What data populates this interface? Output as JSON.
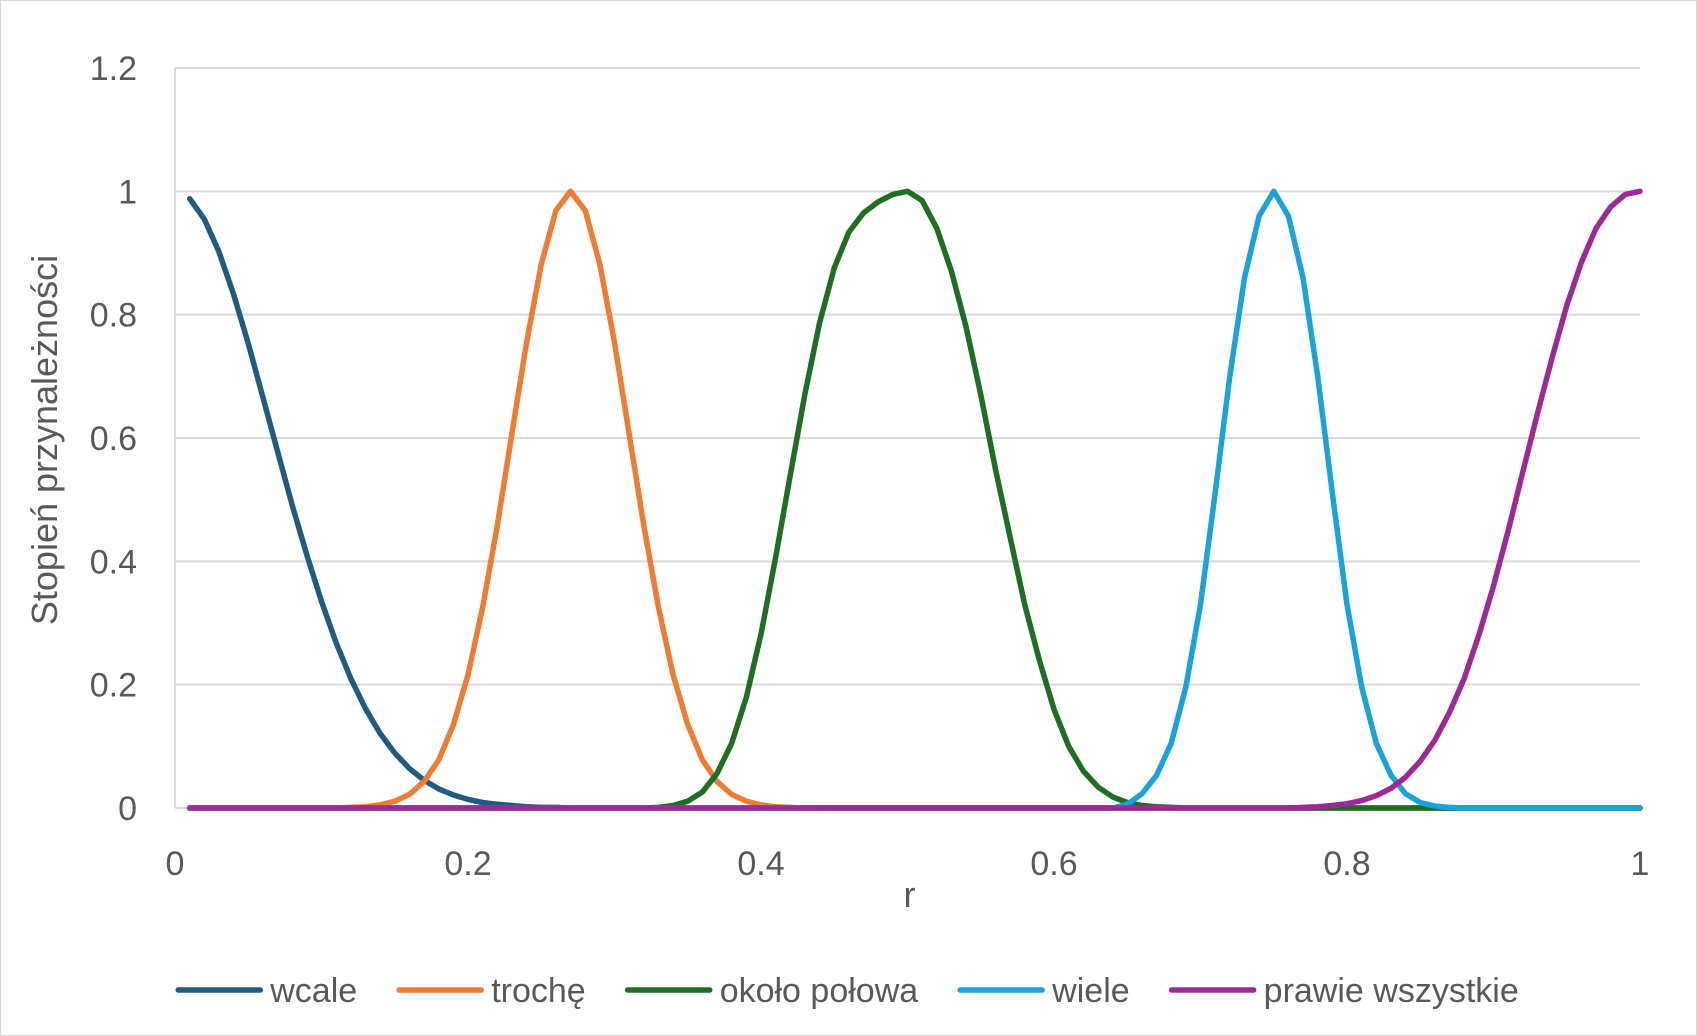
{
  "chart_data": {
    "type": "line",
    "title": "",
    "xlabel": "r",
    "ylabel": "Stopień przynależności",
    "xlim": [
      0,
      1
    ],
    "ylim": [
      0,
      1.2
    ],
    "x_ticks": [
      0,
      0.2,
      0.4,
      0.6,
      0.8,
      1
    ],
    "x_tick_labels": [
      "0",
      "0.2",
      "0.4",
      "0.6",
      "0.8",
      "1"
    ],
    "y_ticks": [
      0,
      0.2,
      0.4,
      0.6,
      0.8,
      1,
      1.2
    ],
    "y_tick_labels": [
      "0",
      "0.2",
      "0.4",
      "0.6",
      "0.8",
      "1",
      "1.2"
    ],
    "grid": "horizontal",
    "legend_position": "bottom",
    "x": [
      0.01,
      0.02,
      0.03,
      0.04,
      0.05,
      0.06,
      0.07,
      0.08,
      0.09,
      0.1,
      0.11,
      0.12,
      0.13,
      0.14,
      0.15,
      0.16,
      0.17,
      0.18,
      0.19,
      0.2,
      0.21,
      0.22,
      0.23,
      0.24,
      0.25,
      0.26,
      0.27,
      0.28,
      0.29,
      0.3,
      0.31,
      0.32,
      0.33,
      0.34,
      0.35,
      0.36,
      0.37,
      0.38,
      0.39,
      0.4,
      0.41,
      0.42,
      0.43,
      0.44,
      0.45,
      0.46,
      0.47,
      0.48,
      0.49,
      0.5,
      0.51,
      0.52,
      0.53,
      0.54,
      0.55,
      0.56,
      0.57,
      0.58,
      0.59,
      0.6,
      0.61,
      0.62,
      0.63,
      0.64,
      0.65,
      0.66,
      0.67,
      0.68,
      0.69,
      0.7,
      0.71,
      0.72,
      0.73,
      0.74,
      0.75,
      0.76,
      0.77,
      0.78,
      0.79,
      0.8,
      0.81,
      0.82,
      0.83,
      0.84,
      0.85,
      0.86,
      0.87,
      0.88,
      0.89,
      0.9,
      0.91,
      0.92,
      0.93,
      0.94,
      0.95,
      0.96,
      0.97,
      0.98,
      0.99,
      1.0
    ],
    "series": [
      {
        "name": "wcale",
        "color": "#1f5c7f",
        "values": [
          0.988,
          0.955,
          0.902,
          0.833,
          0.753,
          0.666,
          0.578,
          0.491,
          0.41,
          0.335,
          0.268,
          0.21,
          0.161,
          0.121,
          0.089,
          0.064,
          0.045,
          0.031,
          0.021,
          0.014,
          0.009,
          0.006,
          0.004,
          0.002,
          0.001,
          0.001,
          0.0,
          0.0,
          0.0,
          0.0,
          0.0,
          0.0,
          0.0,
          0.0,
          0.0,
          0.0,
          0.0,
          0.0,
          0.0,
          0.0,
          0.0,
          0.0,
          0.0,
          0.0,
          0.0,
          0.0,
          0.0,
          0.0,
          0.0,
          0.0,
          0.0,
          0.0,
          0.0,
          0.0,
          0.0,
          0.0,
          0.0,
          0.0,
          0.0,
          0.0,
          0.0,
          0.0,
          0.0,
          0.0,
          0.0,
          0.0,
          0.0,
          0.0,
          0.0,
          0.0,
          0.0,
          0.0,
          0.0,
          0.0,
          0.0,
          0.0,
          0.0,
          0.0,
          0.0,
          0.0,
          0.0,
          0.0,
          0.0,
          0.0,
          0.0,
          0.0,
          0.0,
          0.0,
          0.0,
          0.0,
          0.0,
          0.0,
          0.0,
          0.0,
          0.0,
          0.0,
          0.0,
          0.0,
          0.0,
          0.0
        ]
      },
      {
        "name": "trochę",
        "color": "#ed7d31",
        "values": [
          0.0,
          0.0,
          0.0,
          0.0,
          0.0,
          0.0,
          0.0,
          0.0,
          0.0,
          0.0,
          0.0,
          0.001,
          0.002,
          0.005,
          0.011,
          0.022,
          0.043,
          0.078,
          0.135,
          0.216,
          0.325,
          0.458,
          0.607,
          0.755,
          0.882,
          0.969,
          1.0,
          0.969,
          0.882,
          0.755,
          0.607,
          0.458,
          0.325,
          0.216,
          0.135,
          0.078,
          0.043,
          0.022,
          0.011,
          0.005,
          0.002,
          0.001,
          0.0,
          0.0,
          0.0,
          0.0,
          0.0,
          0.0,
          0.0,
          0.0,
          0.0,
          0.0,
          0.0,
          0.0,
          0.0,
          0.0,
          0.0,
          0.0,
          0.0,
          0.0,
          0.0,
          0.0,
          0.0,
          0.0,
          0.0,
          0.0,
          0.0,
          0.0,
          0.0,
          0.0,
          0.0,
          0.0,
          0.0,
          0.0,
          0.0,
          0.0,
          0.0,
          0.0,
          0.0,
          0.0,
          0.0,
          0.0,
          0.0,
          0.0,
          0.0,
          0.0,
          0.0,
          0.0,
          0.0,
          0.0,
          0.0,
          0.0,
          0.0,
          0.0,
          0.0,
          0.0,
          0.0,
          0.0,
          0.0,
          0.0
        ]
      },
      {
        "name": "około połowa",
        "color": "#1e6e24",
        "values": [
          0.0,
          0.0,
          0.0,
          0.0,
          0.0,
          0.0,
          0.0,
          0.0,
          0.0,
          0.0,
          0.0,
          0.0,
          0.0,
          0.0,
          0.0,
          0.0,
          0.0,
          0.0,
          0.0,
          0.0,
          0.0,
          0.0,
          0.0,
          0.0,
          0.0,
          0.0,
          0.0,
          0.0,
          0.0,
          0.0,
          0.0,
          0.0,
          0.001,
          0.004,
          0.011,
          0.026,
          0.056,
          0.105,
          0.18,
          0.282,
          0.406,
          0.54,
          0.672,
          0.787,
          0.876,
          0.934,
          0.965,
          0.983,
          0.995,
          1.0,
          0.985,
          0.94,
          0.87,
          0.78,
          0.67,
          0.55,
          0.44,
          0.33,
          0.24,
          0.16,
          0.1,
          0.06,
          0.034,
          0.018,
          0.009,
          0.004,
          0.002,
          0.001,
          0.0,
          0.0,
          0.0,
          0.0,
          0.0,
          0.0,
          0.0,
          0.0,
          0.0,
          0.0,
          0.0,
          0.0,
          0.0,
          0.0,
          0.0,
          0.0,
          0.0,
          0.0,
          0.0,
          0.0,
          0.0,
          0.0,
          0.0,
          0.0,
          0.0,
          0.0,
          0.0,
          0.0,
          0.0,
          0.0,
          0.0,
          0.0
        ]
      },
      {
        "name": "wiele",
        "color": "#1aa3db",
        "values": [
          0.0,
          0.0,
          0.0,
          0.0,
          0.0,
          0.0,
          0.0,
          0.0,
          0.0,
          0.0,
          0.0,
          0.0,
          0.0,
          0.0,
          0.0,
          0.0,
          0.0,
          0.0,
          0.0,
          0.0,
          0.0,
          0.0,
          0.0,
          0.0,
          0.0,
          0.0,
          0.0,
          0.0,
          0.0,
          0.0,
          0.0,
          0.0,
          0.0,
          0.0,
          0.0,
          0.0,
          0.0,
          0.0,
          0.0,
          0.0,
          0.0,
          0.0,
          0.0,
          0.0,
          0.0,
          0.0,
          0.0,
          0.0,
          0.0,
          0.0,
          0.0,
          0.0,
          0.0,
          0.0,
          0.0,
          0.0,
          0.0,
          0.0,
          0.0,
          0.0,
          0.0,
          0.0,
          0.0,
          0.0,
          0.006,
          0.023,
          0.053,
          0.105,
          0.196,
          0.33,
          0.51,
          0.7,
          0.86,
          0.96,
          1.0,
          0.96,
          0.86,
          0.7,
          0.51,
          0.33,
          0.196,
          0.105,
          0.053,
          0.023,
          0.009,
          0.003,
          0.001,
          0.0,
          0.0,
          0.0,
          0.0,
          0.0,
          0.0,
          0.0,
          0.0,
          0.0,
          0.0,
          0.0,
          0.0,
          0.0
        ]
      },
      {
        "name": "prawie wszystkie",
        "color": "#9c2a96",
        "values": [
          0.0,
          0.0,
          0.0,
          0.0,
          0.0,
          0.0,
          0.0,
          0.0,
          0.0,
          0.0,
          0.0,
          0.0,
          0.0,
          0.0,
          0.0,
          0.0,
          0.0,
          0.0,
          0.0,
          0.0,
          0.0,
          0.0,
          0.0,
          0.0,
          0.0,
          0.0,
          0.0,
          0.0,
          0.0,
          0.0,
          0.0,
          0.0,
          0.0,
          0.0,
          0.0,
          0.0,
          0.0,
          0.0,
          0.0,
          0.0,
          0.0,
          0.0,
          0.0,
          0.0,
          0.0,
          0.0,
          0.0,
          0.0,
          0.0,
          0.0,
          0.0,
          0.0,
          0.0,
          0.0,
          0.0,
          0.0,
          0.0,
          0.0,
          0.0,
          0.0,
          0.0,
          0.0,
          0.0,
          0.0,
          0.0,
          0.0,
          0.0,
          0.0,
          0.0,
          0.0,
          0.0,
          0.0,
          0.0,
          0.0,
          0.0,
          0.0,
          0.001,
          0.002,
          0.004,
          0.007,
          0.012,
          0.02,
          0.032,
          0.05,
          0.076,
          0.11,
          0.155,
          0.21,
          0.28,
          0.36,
          0.45,
          0.545,
          0.64,
          0.73,
          0.815,
          0.885,
          0.94,
          0.975,
          0.995,
          1.0
        ]
      }
    ]
  }
}
